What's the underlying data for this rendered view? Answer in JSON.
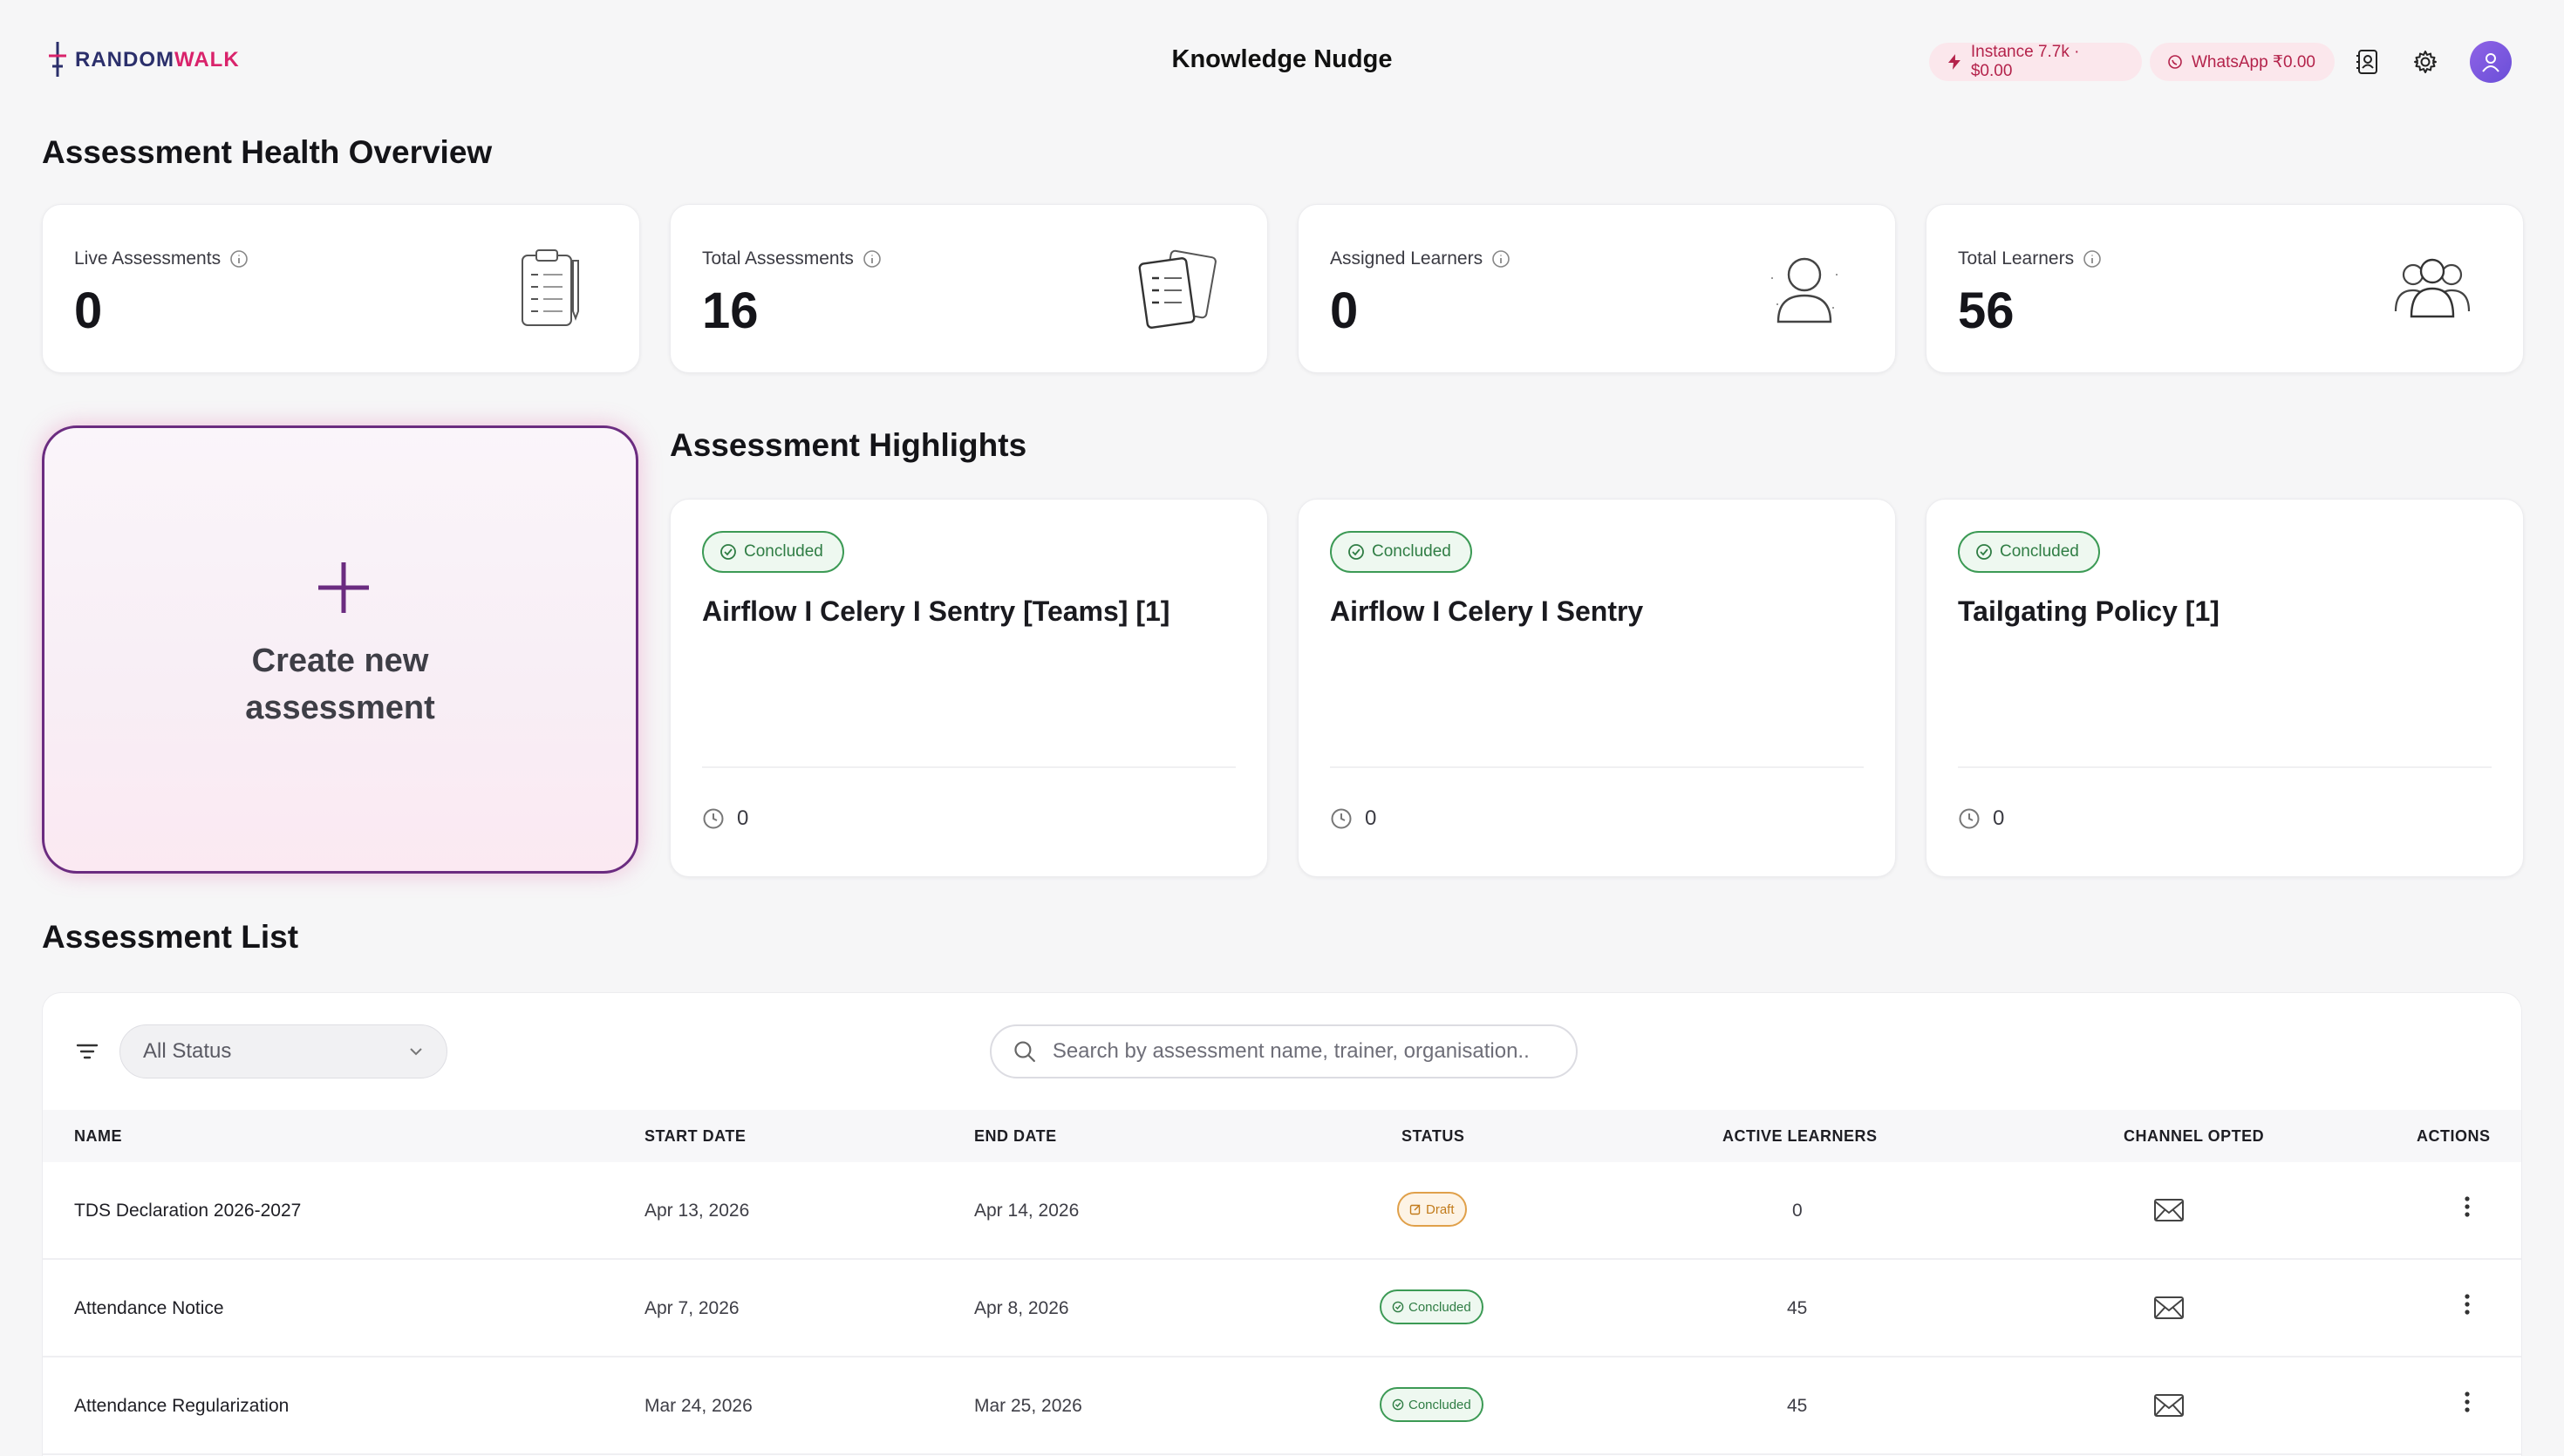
{
  "header": {
    "logo_text_a": "RANDOM",
    "logo_text_b": "WALK",
    "title": "Knowledge Nudge",
    "instance_pill": "Instance 7.7k · $0.00",
    "whatsapp_pill": "WhatsApp ₹0.00"
  },
  "overview": {
    "title": "Assessment Health Overview",
    "stats": [
      {
        "label": "Live Assessments",
        "value": "0",
        "icon": "clipboard-illustration"
      },
      {
        "label": "Total Assessments",
        "value": "16",
        "icon": "clipboards-illustration"
      },
      {
        "label": "Assigned Learners",
        "value": "0",
        "icon": "user-illustration"
      },
      {
        "label": "Total Learners",
        "value": "56",
        "icon": "users-group-illustration"
      }
    ]
  },
  "create": {
    "line1": "Create new",
    "line2": "assessment"
  },
  "highlights": {
    "title": "Assessment Highlights",
    "items": [
      {
        "status": "Concluded",
        "title": "Airflow I Celery I Sentry [Teams] [1]",
        "count": "0"
      },
      {
        "status": "Concluded",
        "title": "Airflow I Celery I Sentry",
        "count": "0"
      },
      {
        "status": "Concluded",
        "title": "Tailgating Policy [1]",
        "count": "0"
      }
    ]
  },
  "list": {
    "title": "Assessment List",
    "status_filter": "All Status",
    "search_placeholder": "Search by assessment name, trainer, organisation..",
    "columns": [
      "NAME",
      "START DATE",
      "END DATE",
      "STATUS",
      "ACTIVE LEARNERS",
      "CHANNEL OPTED",
      "ACTIONS"
    ],
    "rows": [
      {
        "name": "TDS Declaration 2026-2027",
        "start": "Apr 13, 2026",
        "end": "Apr 14, 2026",
        "status": "Draft",
        "learners": "0"
      },
      {
        "name": "Attendance Notice",
        "start": "Apr 7, 2026",
        "end": "Apr 8, 2026",
        "status": "Concluded",
        "learners": "45"
      },
      {
        "name": "Attendance Regularization",
        "start": "Mar 24, 2026",
        "end": "Mar 25, 2026",
        "status": "Concluded",
        "learners": "45"
      }
    ]
  },
  "colors": {
    "accent": "#6b2c80",
    "concluded": "#3c9a55",
    "draft": "#e0a04a",
    "pill": "#b4234b"
  }
}
